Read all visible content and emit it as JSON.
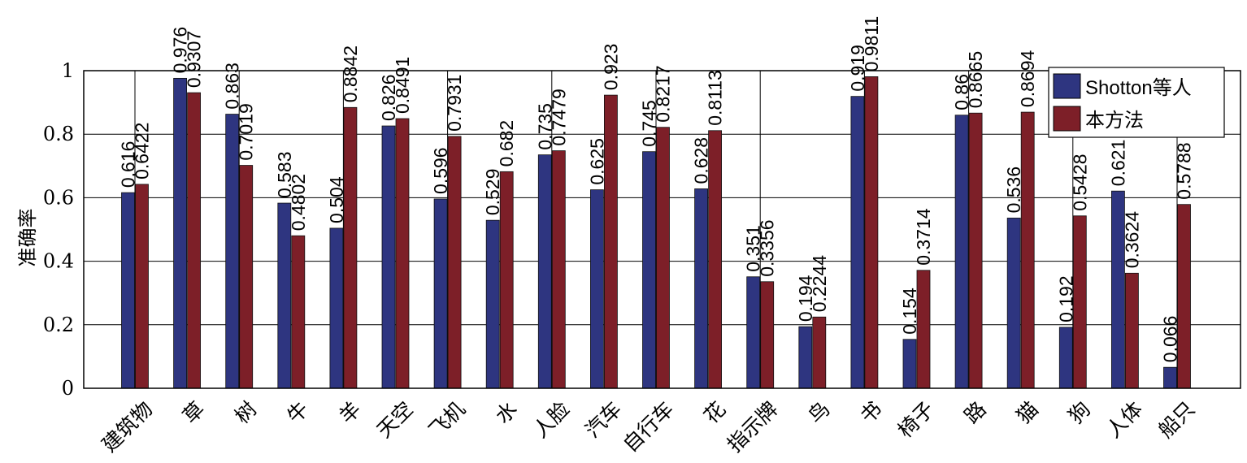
{
  "chart_data": {
    "type": "bar",
    "title": "",
    "xlabel": "",
    "ylabel": "准确率",
    "ylim": [
      0,
      1
    ],
    "yticks": [
      0,
      0.2,
      0.4,
      0.6,
      0.8,
      1
    ],
    "ytick_labels": [
      "0",
      "0.2",
      "0.4",
      "0.6",
      "0.8",
      "1"
    ],
    "grid": true,
    "legend_position": "top-right",
    "categories": [
      "建筑物",
      "草",
      "树",
      "牛",
      "羊",
      "天空",
      "飞机",
      "水",
      "人脸",
      "汽车",
      "自行车",
      "花",
      "指示牌",
      "鸟",
      "书",
      "椅子",
      "路",
      "猫",
      "狗",
      "人体",
      "船只"
    ],
    "series": [
      {
        "name": "Shotton等人",
        "color": "#2e3580",
        "values": [
          0.616,
          0.976,
          0.863,
          0.583,
          0.504,
          0.826,
          0.596,
          0.529,
          0.735,
          0.625,
          0.745,
          0.628,
          0.351,
          0.194,
          0.919,
          0.154,
          0.86,
          0.536,
          0.192,
          0.621,
          0.066
        ],
        "labels": [
          "0.616",
          "0.976",
          "0.863",
          "0.583",
          "0.504",
          "0.826",
          "0.596",
          "0.529",
          "0.735",
          "0.625",
          "0.745",
          "0.628",
          "0.351",
          "0.194",
          "0.919",
          "0.154",
          "0.86",
          "0.536",
          "0.192",
          "0.621",
          "0.066"
        ]
      },
      {
        "name": "本方法",
        "color": "#7d1f28",
        "values": [
          0.6422,
          0.9307,
          0.7019,
          0.4802,
          0.8842,
          0.8491,
          0.7931,
          0.682,
          0.7479,
          0.923,
          0.8217,
          0.8113,
          0.3356,
          0.2244,
          0.9811,
          0.3714,
          0.8665,
          0.8694,
          0.5428,
          0.3624,
          0.5788
        ],
        "labels": [
          "0.6422",
          "0.9307",
          "0.7019",
          "0.4802",
          "0.8842",
          "0.8491",
          "0.7931",
          "0.682",
          "0.7479",
          "0.923",
          "0.8217",
          "0.8113",
          "0.3356",
          "0.2244",
          "0.9811",
          "0.3714",
          "0.8665",
          "0.8694",
          "0.5428",
          "0.3624",
          "0.5788"
        ]
      }
    ]
  }
}
